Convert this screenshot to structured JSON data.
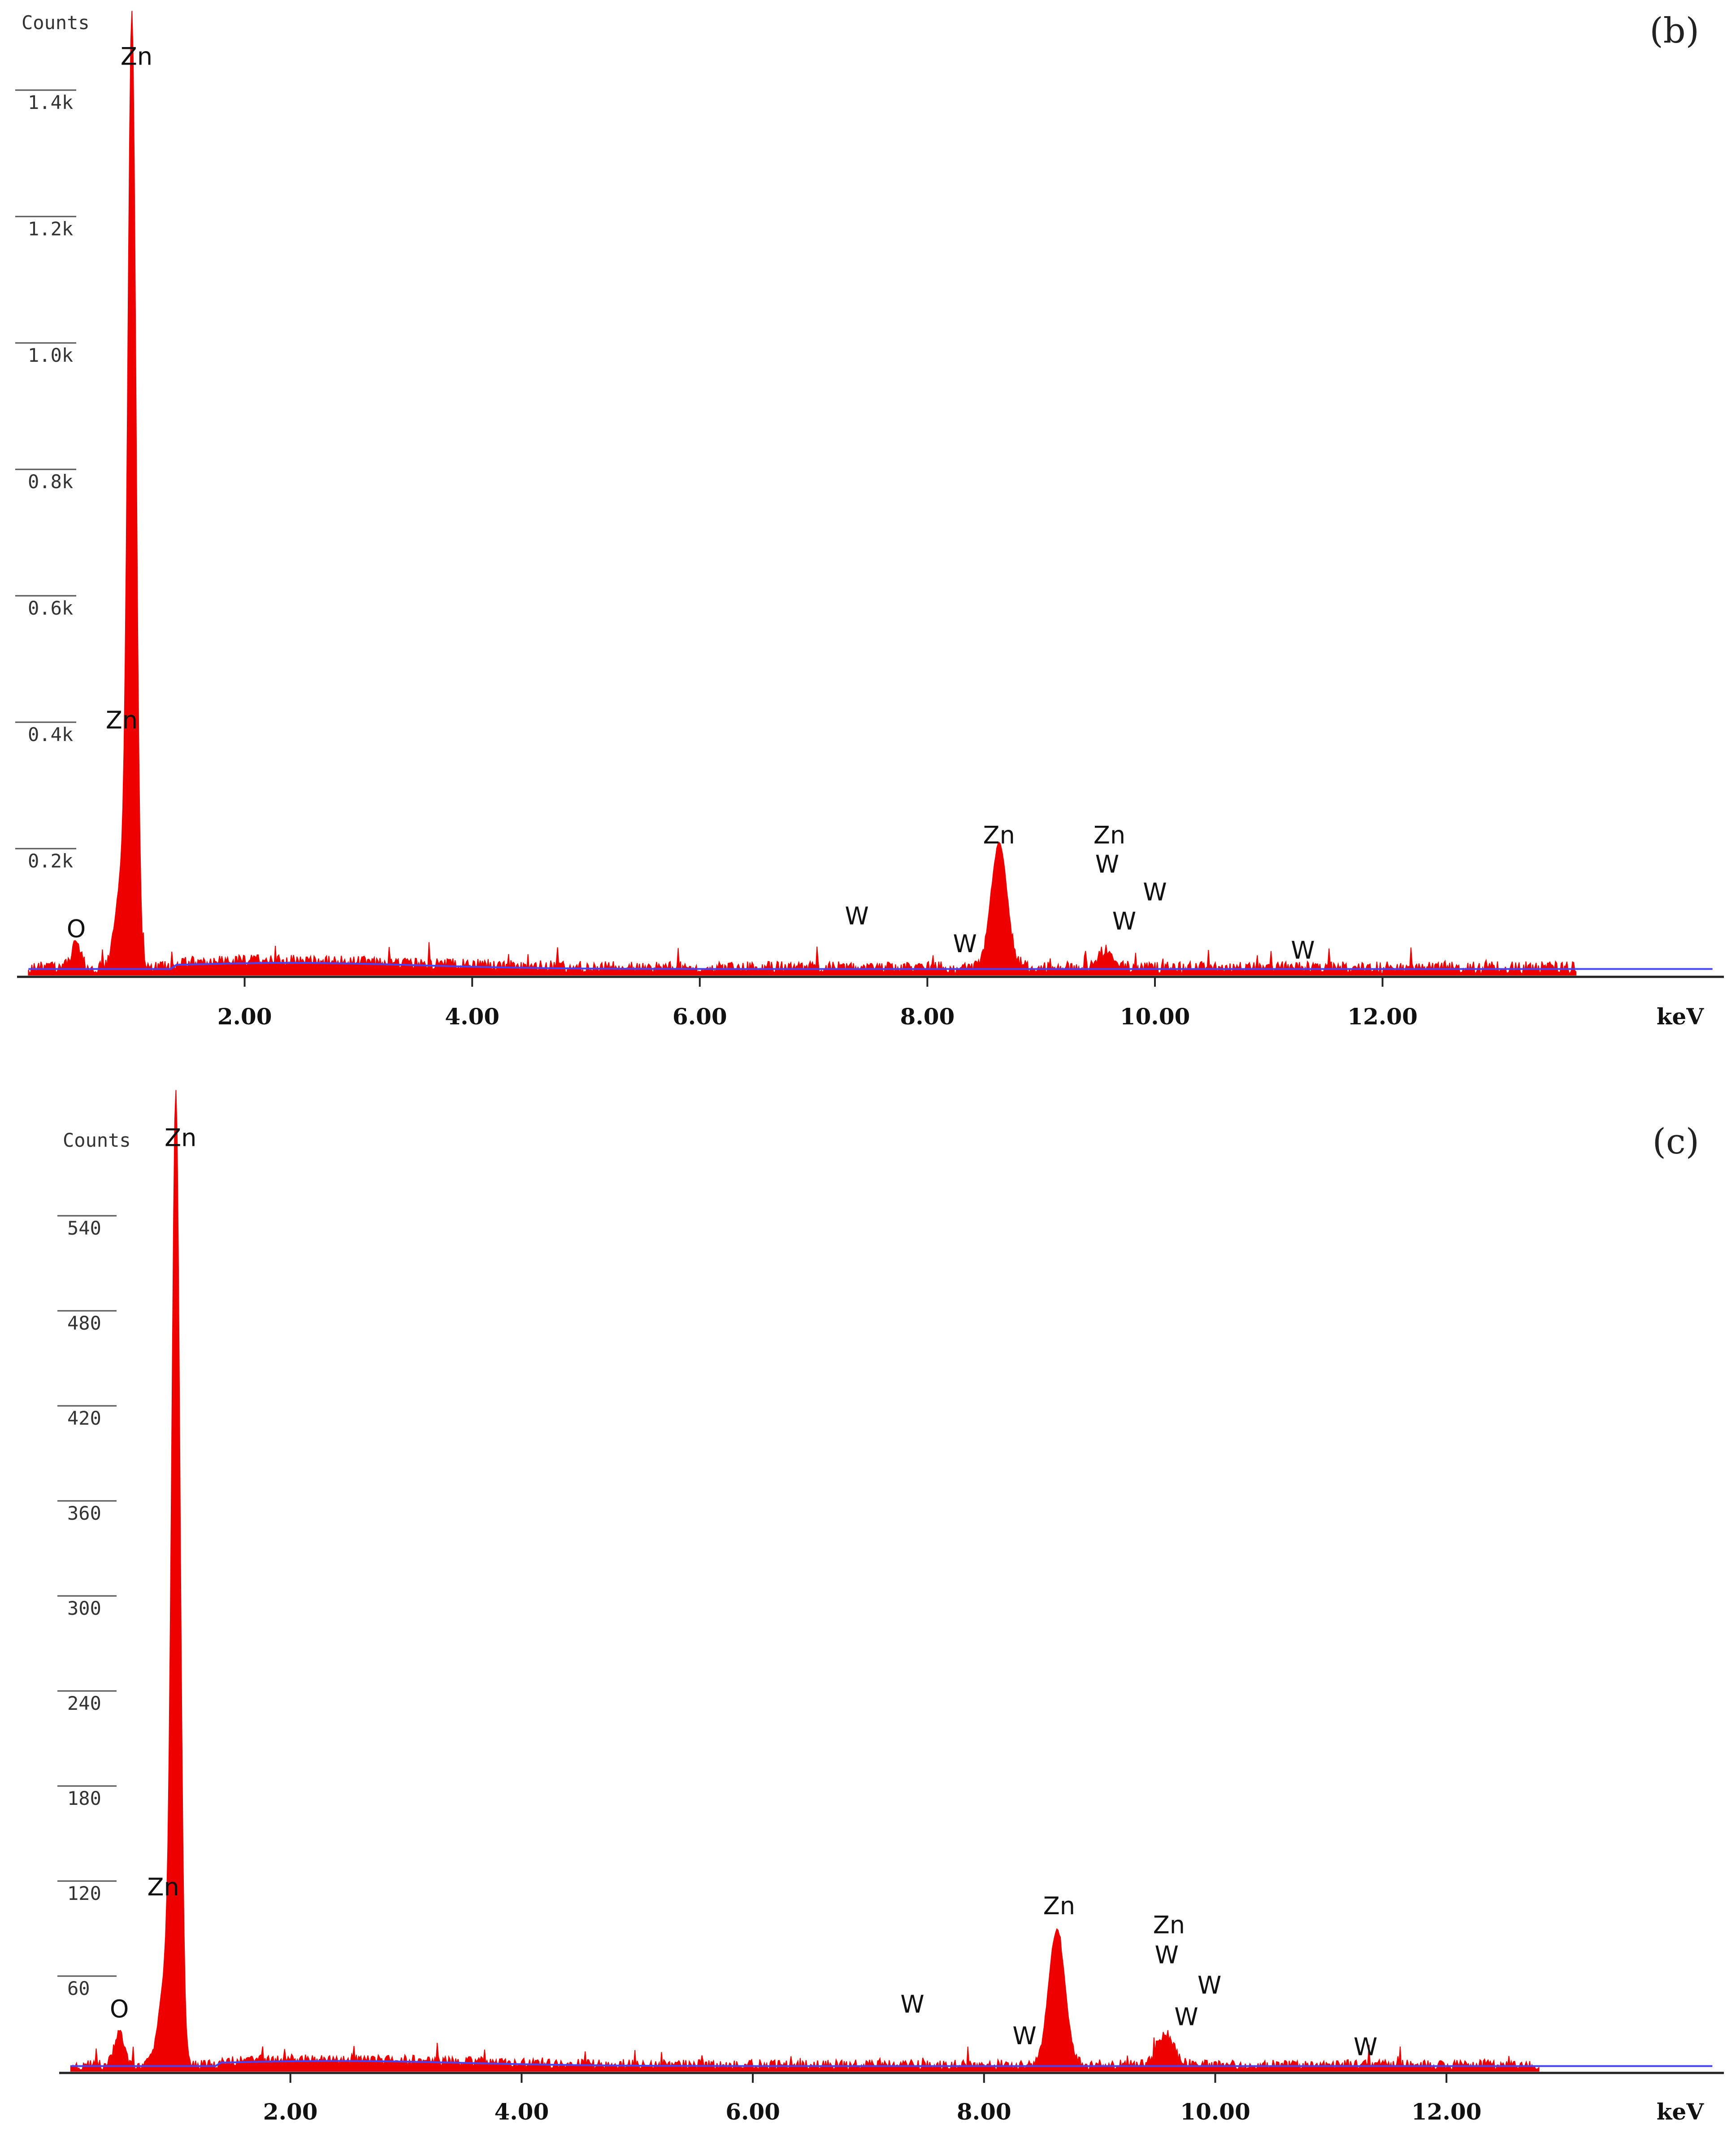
{
  "chart_data": [
    {
      "type": "area",
      "panel": "(b)",
      "ylabel": "Counts",
      "xlabel": "keV",
      "xlim": [
        0,
        15.0
      ],
      "ylim": [
        0,
        1500
      ],
      "x_ticks": [
        "2.00",
        "4.00",
        "6.00",
        "8.00",
        "10.00",
        "12.00"
      ],
      "x_tick_values": [
        2,
        4,
        6,
        8,
        10,
        12
      ],
      "y_ticks": [
        "0.2k",
        "0.4k",
        "0.6k",
        "0.8k",
        "1.0k",
        "1.2k",
        "1.4k"
      ],
      "y_tick_values": [
        200,
        400,
        600,
        800,
        1000,
        1200,
        1400
      ],
      "spectrum_end": 13.7,
      "baseline": 12,
      "peaks": [
        {
          "x": 0.52,
          "y": 40,
          "w": 0.04
        },
        {
          "x": 1.01,
          "y": 1450,
          "w": 0.035
        },
        {
          "x": 0.93,
          "y": 150,
          "w": 0.06
        },
        {
          "x": 8.63,
          "y": 195,
          "w": 0.07
        },
        {
          "x": 9.57,
          "y": 28,
          "w": 0.07
        }
      ],
      "annotations": [
        {
          "text": "Zn",
          "x": 1.05,
          "y": 1440
        },
        {
          "text": "Zn",
          "x": 0.92,
          "y": 390
        },
        {
          "text": "O",
          "x": 0.52,
          "y": 60
        },
        {
          "text": "W",
          "x": 7.38,
          "y": 80
        },
        {
          "text": "W",
          "x": 8.33,
          "y": 36
        },
        {
          "text": "Zn",
          "x": 8.63,
          "y": 208
        },
        {
          "text": "Zn",
          "x": 9.6,
          "y": 208
        },
        {
          "text": "W",
          "x": 9.58,
          "y": 162
        },
        {
          "text": "W",
          "x": 10.0,
          "y": 118
        },
        {
          "text": "W",
          "x": 9.73,
          "y": 72
        },
        {
          "text": "W",
          "x": 11.3,
          "y": 26
        }
      ],
      "color": "#ee0000",
      "background_color": "#4444ff"
    },
    {
      "type": "area",
      "panel": "(c)",
      "ylabel": "Counts",
      "xlabel": "keV",
      "xlim": [
        0,
        14.4
      ],
      "ylim": [
        0,
        600
      ],
      "x_ticks": [
        "2.00",
        "4.00",
        "6.00",
        "8.00",
        "10.00",
        "12.00"
      ],
      "x_tick_values": [
        2,
        4,
        6,
        8,
        10,
        12
      ],
      "y_ticks": [
        "60",
        "120",
        "180",
        "240",
        "300",
        "360",
        "420",
        "480",
        "540"
      ],
      "y_tick_values": [
        60,
        120,
        180,
        240,
        300,
        360,
        420,
        480,
        540
      ],
      "spectrum_end": 12.8,
      "baseline": 4,
      "peaks": [
        {
          "x": 0.52,
          "y": 22,
          "w": 0.04
        },
        {
          "x": 1.01,
          "y": 590,
          "w": 0.035
        },
        {
          "x": 0.93,
          "y": 60,
          "w": 0.06
        },
        {
          "x": 8.63,
          "y": 85,
          "w": 0.07
        },
        {
          "x": 9.57,
          "y": 20,
          "w": 0.07
        }
      ],
      "annotations": [
        {
          "text": "Zn",
          "x": 1.05,
          "y": 584
        },
        {
          "text": "Zn",
          "x": 0.9,
          "y": 111
        },
        {
          "text": "O",
          "x": 0.52,
          "y": 34
        },
        {
          "text": "W",
          "x": 7.38,
          "y": 37
        },
        {
          "text": "W",
          "x": 8.35,
          "y": 17
        },
        {
          "text": "Zn",
          "x": 8.65,
          "y": 99
        },
        {
          "text": "Zn",
          "x": 9.6,
          "y": 87
        },
        {
          "text": "W",
          "x": 9.58,
          "y": 68
        },
        {
          "text": "W",
          "x": 9.95,
          "y": 49
        },
        {
          "text": "W",
          "x": 9.75,
          "y": 29
        },
        {
          "text": "W",
          "x": 11.3,
          "y": 10
        }
      ],
      "color": "#ee0000",
      "background_color": "#4444ff"
    }
  ]
}
